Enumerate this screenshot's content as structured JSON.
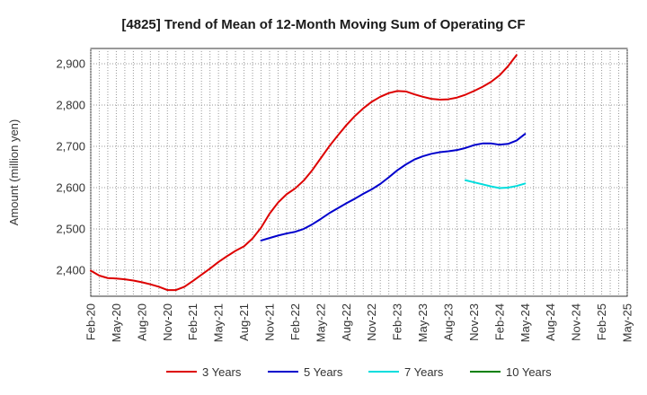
{
  "chart_data": {
    "type": "line",
    "title": "[4825]  Trend of Mean of 12-Month Moving Sum of Operating CF",
    "xlabel": "",
    "ylabel": "Amount (million yen)",
    "ylim": [
      2337,
      2937
    ],
    "yticks": [
      2400,
      2500,
      2600,
      2700,
      2800,
      2900
    ],
    "ytick_labels": [
      "2,400",
      "2,500",
      "2,600",
      "2,700",
      "2,800",
      "2,900"
    ],
    "x_months": [
      "2020-02",
      "2020-03",
      "2020-04",
      "2020-05",
      "2020-06",
      "2020-07",
      "2020-08",
      "2020-09",
      "2020-10",
      "2020-11",
      "2020-12",
      "2021-01",
      "2021-02",
      "2021-03",
      "2021-04",
      "2021-05",
      "2021-06",
      "2021-07",
      "2021-08",
      "2021-09",
      "2021-10",
      "2021-11",
      "2021-12",
      "2022-01",
      "2022-02",
      "2022-03",
      "2022-04",
      "2022-05",
      "2022-06",
      "2022-07",
      "2022-08",
      "2022-09",
      "2022-10",
      "2022-11",
      "2022-12",
      "2023-01",
      "2023-02",
      "2023-03",
      "2023-04",
      "2023-05",
      "2023-06",
      "2023-07",
      "2023-08",
      "2023-09",
      "2023-10",
      "2023-11",
      "2023-12",
      "2024-01",
      "2024-02",
      "2024-03",
      "2024-04",
      "2024-05",
      "2024-06",
      "2024-07",
      "2024-08",
      "2024-09",
      "2024-10",
      "2024-11",
      "2024-12",
      "2025-01",
      "2025-02",
      "2025-03",
      "2025-04",
      "2025-05"
    ],
    "xtick_labels": [
      "Feb-20",
      "May-20",
      "Aug-20",
      "Nov-20",
      "Feb-21",
      "May-21",
      "Aug-21",
      "Nov-21",
      "Feb-22",
      "May-22",
      "Aug-22",
      "Nov-22",
      "Feb-23",
      "May-23",
      "Aug-23",
      "Nov-23",
      "Feb-24",
      "May-24",
      "Aug-24",
      "Nov-24",
      "Feb-25",
      "May-25"
    ],
    "grid": true,
    "legend_position": "bottom",
    "series": [
      {
        "name": "3 Years",
        "color": "#dd0000",
        "start_index": 0,
        "values": [
          2399,
          2387,
          2381,
          2380,
          2378,
          2375,
          2371,
          2366,
          2360,
          2352,
          2352,
          2360,
          2374,
          2389,
          2404,
          2420,
          2434,
          2447,
          2458,
          2477,
          2503,
          2537,
          2564,
          2584,
          2598,
          2617,
          2642,
          2671,
          2700,
          2726,
          2751,
          2773,
          2792,
          2808,
          2820,
          2829,
          2834,
          2833,
          2826,
          2820,
          2815,
          2813,
          2814,
          2818,
          2825,
          2834,
          2844,
          2856,
          2872,
          2894,
          2921
        ]
      },
      {
        "name": "5 Years",
        "color": "#0000cc",
        "start_index": 20,
        "values": [
          2472,
          2478,
          2484,
          2489,
          2493,
          2500,
          2511,
          2524,
          2538,
          2550,
          2562,
          2573,
          2585,
          2596,
          2609,
          2625,
          2642,
          2656,
          2668,
          2676,
          2682,
          2686,
          2688,
          2691,
          2696,
          2703,
          2707,
          2707,
          2704,
          2706,
          2714,
          2730
        ]
      },
      {
        "name": "7 Years",
        "color": "#00dddd",
        "start_index": 44,
        "values": [
          2618,
          2613,
          2608,
          2603,
          2599,
          2600,
          2604,
          2610
        ]
      },
      {
        "name": "10 Years",
        "color": "#008000",
        "start_index": 0,
        "values": []
      }
    ]
  }
}
